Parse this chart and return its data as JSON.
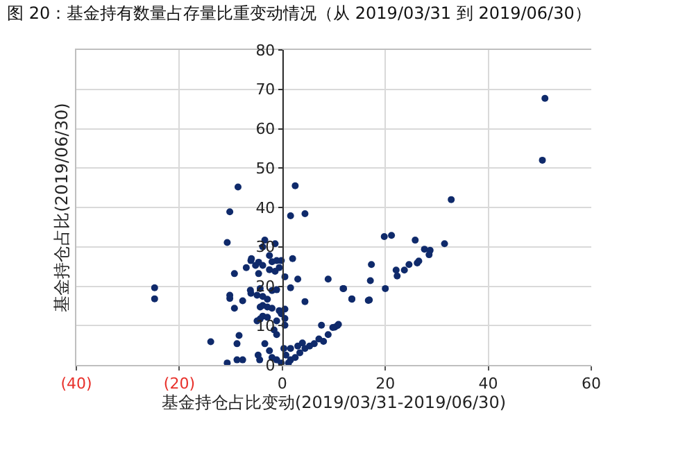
{
  "chart_data": {
    "type": "scatter",
    "title": "图 20：基金持有数量占存量比重变动情况（从 2019/03/31 到 2019/06/30）",
    "xlabel": "基金持仓占比变动(2019/03/31-2019/06/30)",
    "ylabel": "基金持仓占比(2019/06/30)",
    "xlim": [
      -40,
      60
    ],
    "ylim": [
      0,
      80
    ],
    "xticks": [
      {
        "value": -40,
        "label": "(40)"
      },
      {
        "value": -20,
        "label": "(20)"
      },
      0,
      20,
      40,
      60
    ],
    "yticks": [
      0,
      10,
      20,
      30,
      40,
      50,
      60,
      70,
      80
    ],
    "grid": true,
    "marker": "circle",
    "series": [
      {
        "color": "#0f2a6b",
        "x": [
          51,
          50.5,
          32.8,
          19.8,
          21.2,
          25.8,
          27.6,
          28.7,
          28.5,
          31.5,
          17.3,
          17.1,
          22.1,
          22.3,
          23.7,
          24.6,
          26.2,
          26.5,
          11.8,
          13.5,
          16.9,
          16.7,
          20,
          10.7,
          10.2,
          -24.8,
          -24.8,
          -13.9,
          -10.2,
          -10.7,
          -9.3,
          -10.2,
          -10.2,
          -9.3,
          -7.7,
          -8.4,
          -8.8,
          -10.7,
          -8.8,
          -7.7,
          -7,
          -6.1,
          -6,
          -5.2,
          -4.6,
          -3.4,
          -3.8,
          -1.4,
          -2.5,
          -2,
          -1.1,
          -0.2,
          -0.6,
          -1.4,
          -2.5,
          -3.8,
          -4.6,
          1.6,
          4.4,
          2,
          3,
          0.5,
          -1.1,
          -2,
          -4.3,
          -6.1,
          -6.2,
          -4.9,
          -3.8,
          -2.9,
          1.6,
          4.4,
          8.9,
          11.9,
          13.5,
          -4.3,
          -3.8,
          -2.9,
          -2,
          -0.6,
          0.5,
          -3.8,
          -2.9,
          -4.9,
          -4.3,
          -1.1,
          -0.2,
          0.5,
          0.5,
          -1.6,
          -1.1,
          -3.4,
          -2.5,
          -4.7,
          -4.4,
          -2,
          -1.1,
          0.3,
          0.7,
          1.6,
          -0.2,
          1.2,
          2.5,
          3.4,
          4.4,
          5.3,
          3.9,
          6.2,
          7.1,
          8,
          8.9,
          7.6,
          9.8,
          10.9,
          3,
          1.6,
          -8.6,
          2.5
        ],
        "values": [
          67.7,
          52,
          42,
          32.6,
          32.9,
          31.7,
          29.4,
          29.1,
          28,
          30.8,
          25.5,
          21.4,
          24.1,
          22.6,
          24.1,
          25.5,
          25.9,
          26.4,
          19.4,
          16.7,
          16.5,
          16.4,
          19.4,
          10,
          9.6,
          19.6,
          16.8,
          5.9,
          38.9,
          31.1,
          23.2,
          17.7,
          16.9,
          14.4,
          16.3,
          7.5,
          5.4,
          0.5,
          1.3,
          1.3,
          24.7,
          26.5,
          27,
          25.3,
          26.1,
          31.7,
          30,
          30.8,
          27.8,
          26.2,
          26.5,
          26.5,
          24.7,
          23.8,
          24.2,
          25.3,
          23.2,
          37.9,
          38.4,
          27,
          21.8,
          22.4,
          19.1,
          18.9,
          19.4,
          18.2,
          19,
          17.7,
          17.4,
          16.7,
          19.6,
          16.1,
          21.8,
          19.4,
          16.8,
          14.7,
          15.1,
          14.7,
          14.4,
          13.8,
          14.2,
          12.4,
          12.1,
          11.2,
          11.7,
          11.2,
          13,
          11.8,
          10.1,
          8.9,
          7.7,
          5.4,
          3.6,
          2.5,
          1.3,
          1.9,
          1.3,
          4.2,
          2.5,
          1.3,
          0.5,
          0.5,
          1.9,
          3.1,
          4.2,
          4.8,
          5.6,
          5.4,
          6.6,
          6,
          7.7,
          10.1,
          9.5,
          10.3,
          4.8,
          4.2,
          45.2,
          45.5
        ]
      }
    ]
  }
}
